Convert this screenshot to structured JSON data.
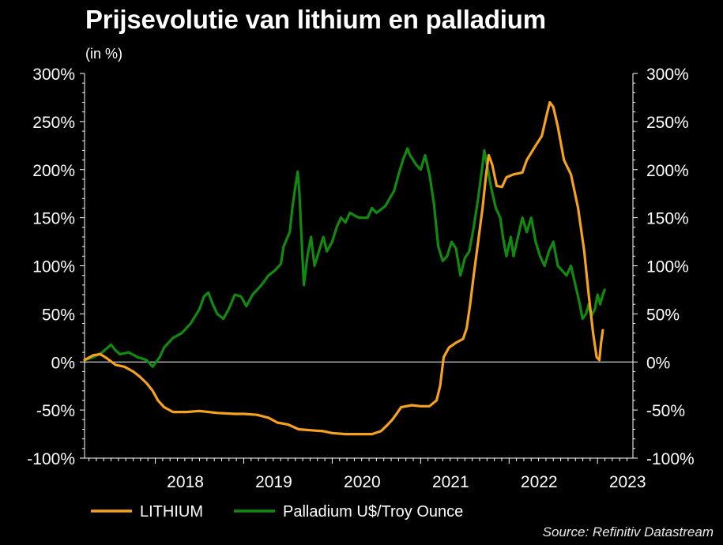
{
  "chart_data": {
    "type": "line",
    "title": "Prijsevolutie van lithium en palladium",
    "subtitle": "(in %)",
    "source": "Source: Refinitiv Datastream",
    "ylim": [
      -100,
      300
    ],
    "yticks": [
      -100,
      -50,
      0,
      50,
      100,
      150,
      200,
      250,
      300
    ],
    "ytick_labels": [
      "-100%",
      "-50%",
      "0%",
      "50%",
      "100%",
      "150%",
      "200%",
      "250%",
      "300%"
    ],
    "xlim": [
      2017.2,
      2023.4
    ],
    "xticks": [
      2018,
      2019,
      2020,
      2021,
      2022,
      2023
    ],
    "xtick_labels": [
      "2018",
      "2019",
      "2020",
      "2021",
      "2022",
      "2023"
    ],
    "grid": false,
    "legend_position": "bottom",
    "series": [
      {
        "name": "LITHIUM",
        "color": "#f5a21f",
        "points": [
          [
            2017.2,
            2
          ],
          [
            2017.3,
            7
          ],
          [
            2017.38,
            8
          ],
          [
            2017.45,
            4
          ],
          [
            2017.55,
            -3
          ],
          [
            2017.65,
            -5
          ],
          [
            2017.75,
            -10
          ],
          [
            2017.82,
            -15
          ],
          [
            2017.9,
            -22
          ],
          [
            2017.97,
            -30
          ],
          [
            2018.03,
            -40
          ],
          [
            2018.1,
            -47
          ],
          [
            2018.2,
            -52
          ],
          [
            2018.35,
            -52
          ],
          [
            2018.5,
            -51
          ],
          [
            2018.7,
            -53
          ],
          [
            2018.9,
            -54
          ],
          [
            2019.0,
            -54
          ],
          [
            2019.15,
            -55
          ],
          [
            2019.28,
            -58
          ],
          [
            2019.38,
            -63
          ],
          [
            2019.5,
            -65
          ],
          [
            2019.62,
            -70
          ],
          [
            2019.75,
            -71
          ],
          [
            2019.9,
            -72
          ],
          [
            2020.0,
            -74
          ],
          [
            2020.15,
            -75
          ],
          [
            2020.3,
            -75
          ],
          [
            2020.45,
            -75
          ],
          [
            2020.55,
            -72
          ],
          [
            2020.62,
            -66
          ],
          [
            2020.68,
            -60
          ],
          [
            2020.72,
            -55
          ],
          [
            2020.78,
            -47
          ],
          [
            2020.9,
            -45
          ],
          [
            2021.0,
            -46
          ],
          [
            2021.1,
            -46
          ],
          [
            2021.18,
            -40
          ],
          [
            2021.22,
            -25
          ],
          [
            2021.26,
            5
          ],
          [
            2021.32,
            15
          ],
          [
            2021.4,
            20
          ],
          [
            2021.48,
            24
          ],
          [
            2021.52,
            35
          ],
          [
            2021.56,
            60
          ],
          [
            2021.6,
            90
          ],
          [
            2021.65,
            125
          ],
          [
            2021.7,
            160
          ],
          [
            2021.74,
            195
          ],
          [
            2021.77,
            215
          ],
          [
            2021.81,
            205
          ],
          [
            2021.86,
            183
          ],
          [
            2021.92,
            182
          ],
          [
            2021.97,
            192
          ],
          [
            2022.05,
            195
          ],
          [
            2022.15,
            197
          ],
          [
            2022.2,
            210
          ],
          [
            2022.3,
            225
          ],
          [
            2022.37,
            235
          ],
          [
            2022.42,
            255
          ],
          [
            2022.46,
            270
          ],
          [
            2022.5,
            265
          ],
          [
            2022.55,
            245
          ],
          [
            2022.62,
            210
          ],
          [
            2022.7,
            195
          ],
          [
            2022.78,
            160
          ],
          [
            2022.85,
            115
          ],
          [
            2022.9,
            70
          ],
          [
            2022.95,
            30
          ],
          [
            2022.99,
            5
          ],
          [
            2023.02,
            2
          ],
          [
            2023.04,
            20
          ],
          [
            2023.06,
            33
          ]
        ]
      },
      {
        "name": "Palladium U$/Troy Ounce",
        "color": "#118a0f",
        "points": [
          [
            2017.2,
            2
          ],
          [
            2017.3,
            5
          ],
          [
            2017.4,
            10
          ],
          [
            2017.5,
            18
          ],
          [
            2017.55,
            12
          ],
          [
            2017.6,
            8
          ],
          [
            2017.7,
            10
          ],
          [
            2017.8,
            5
          ],
          [
            2017.9,
            2
          ],
          [
            2017.97,
            -5
          ],
          [
            2018.05,
            5
          ],
          [
            2018.1,
            15
          ],
          [
            2018.2,
            25
          ],
          [
            2018.3,
            30
          ],
          [
            2018.4,
            40
          ],
          [
            2018.5,
            55
          ],
          [
            2018.55,
            68
          ],
          [
            2018.6,
            72
          ],
          [
            2018.65,
            60
          ],
          [
            2018.7,
            50
          ],
          [
            2018.77,
            45
          ],
          [
            2018.83,
            55
          ],
          [
            2018.9,
            70
          ],
          [
            2018.97,
            68
          ],
          [
            2019.03,
            58
          ],
          [
            2019.1,
            70
          ],
          [
            2019.2,
            80
          ],
          [
            2019.28,
            90
          ],
          [
            2019.35,
            95
          ],
          [
            2019.42,
            102
          ],
          [
            2019.45,
            120
          ],
          [
            2019.52,
            135
          ],
          [
            2019.55,
            160
          ],
          [
            2019.58,
            180
          ],
          [
            2019.61,
            198
          ],
          [
            2019.63,
            175
          ],
          [
            2019.66,
            115
          ],
          [
            2019.68,
            80
          ],
          [
            2019.72,
            110
          ],
          [
            2019.76,
            130
          ],
          [
            2019.8,
            100
          ],
          [
            2019.85,
            115
          ],
          [
            2019.9,
            130
          ],
          [
            2019.94,
            115
          ],
          [
            2020.0,
            125
          ],
          [
            2020.05,
            140
          ],
          [
            2020.1,
            150
          ],
          [
            2020.15,
            145
          ],
          [
            2020.2,
            155
          ],
          [
            2020.3,
            150
          ],
          [
            2020.4,
            150
          ],
          [
            2020.45,
            160
          ],
          [
            2020.5,
            155
          ],
          [
            2020.6,
            162
          ],
          [
            2020.7,
            178
          ],
          [
            2020.75,
            195
          ],
          [
            2020.8,
            210
          ],
          [
            2020.85,
            222
          ],
          [
            2020.88,
            215
          ],
          [
            2020.95,
            205
          ],
          [
            2021.0,
            200
          ],
          [
            2021.05,
            215
          ],
          [
            2021.1,
            195
          ],
          [
            2021.15,
            165
          ],
          [
            2021.2,
            120
          ],
          [
            2021.25,
            105
          ],
          [
            2021.3,
            110
          ],
          [
            2021.35,
            125
          ],
          [
            2021.4,
            118
          ],
          [
            2021.45,
            90
          ],
          [
            2021.5,
            108
          ],
          [
            2021.55,
            115
          ],
          [
            2021.6,
            140
          ],
          [
            2021.65,
            170
          ],
          [
            2021.7,
            205
          ],
          [
            2021.72,
            220
          ],
          [
            2021.75,
            205
          ],
          [
            2021.8,
            180
          ],
          [
            2021.85,
            160
          ],
          [
            2021.9,
            150
          ],
          [
            2021.93,
            130
          ],
          [
            2021.97,
            110
          ],
          [
            2022.02,
            130
          ],
          [
            2022.05,
            110
          ],
          [
            2022.1,
            130
          ],
          [
            2022.15,
            150
          ],
          [
            2022.2,
            135
          ],
          [
            2022.25,
            150
          ],
          [
            2022.3,
            125
          ],
          [
            2022.35,
            110
          ],
          [
            2022.4,
            100
          ],
          [
            2022.45,
            115
          ],
          [
            2022.5,
            125
          ],
          [
            2022.55,
            100
          ],
          [
            2022.6,
            95
          ],
          [
            2022.65,
            90
          ],
          [
            2022.7,
            100
          ],
          [
            2022.75,
            80
          ],
          [
            2022.8,
            60
          ],
          [
            2022.83,
            45
          ],
          [
            2022.87,
            50
          ],
          [
            2022.9,
            60
          ],
          [
            2022.93,
            48
          ],
          [
            2022.97,
            55
          ],
          [
            2023.0,
            70
          ],
          [
            2023.03,
            60
          ],
          [
            2023.06,
            70
          ],
          [
            2023.08,
            75
          ]
        ]
      }
    ]
  }
}
